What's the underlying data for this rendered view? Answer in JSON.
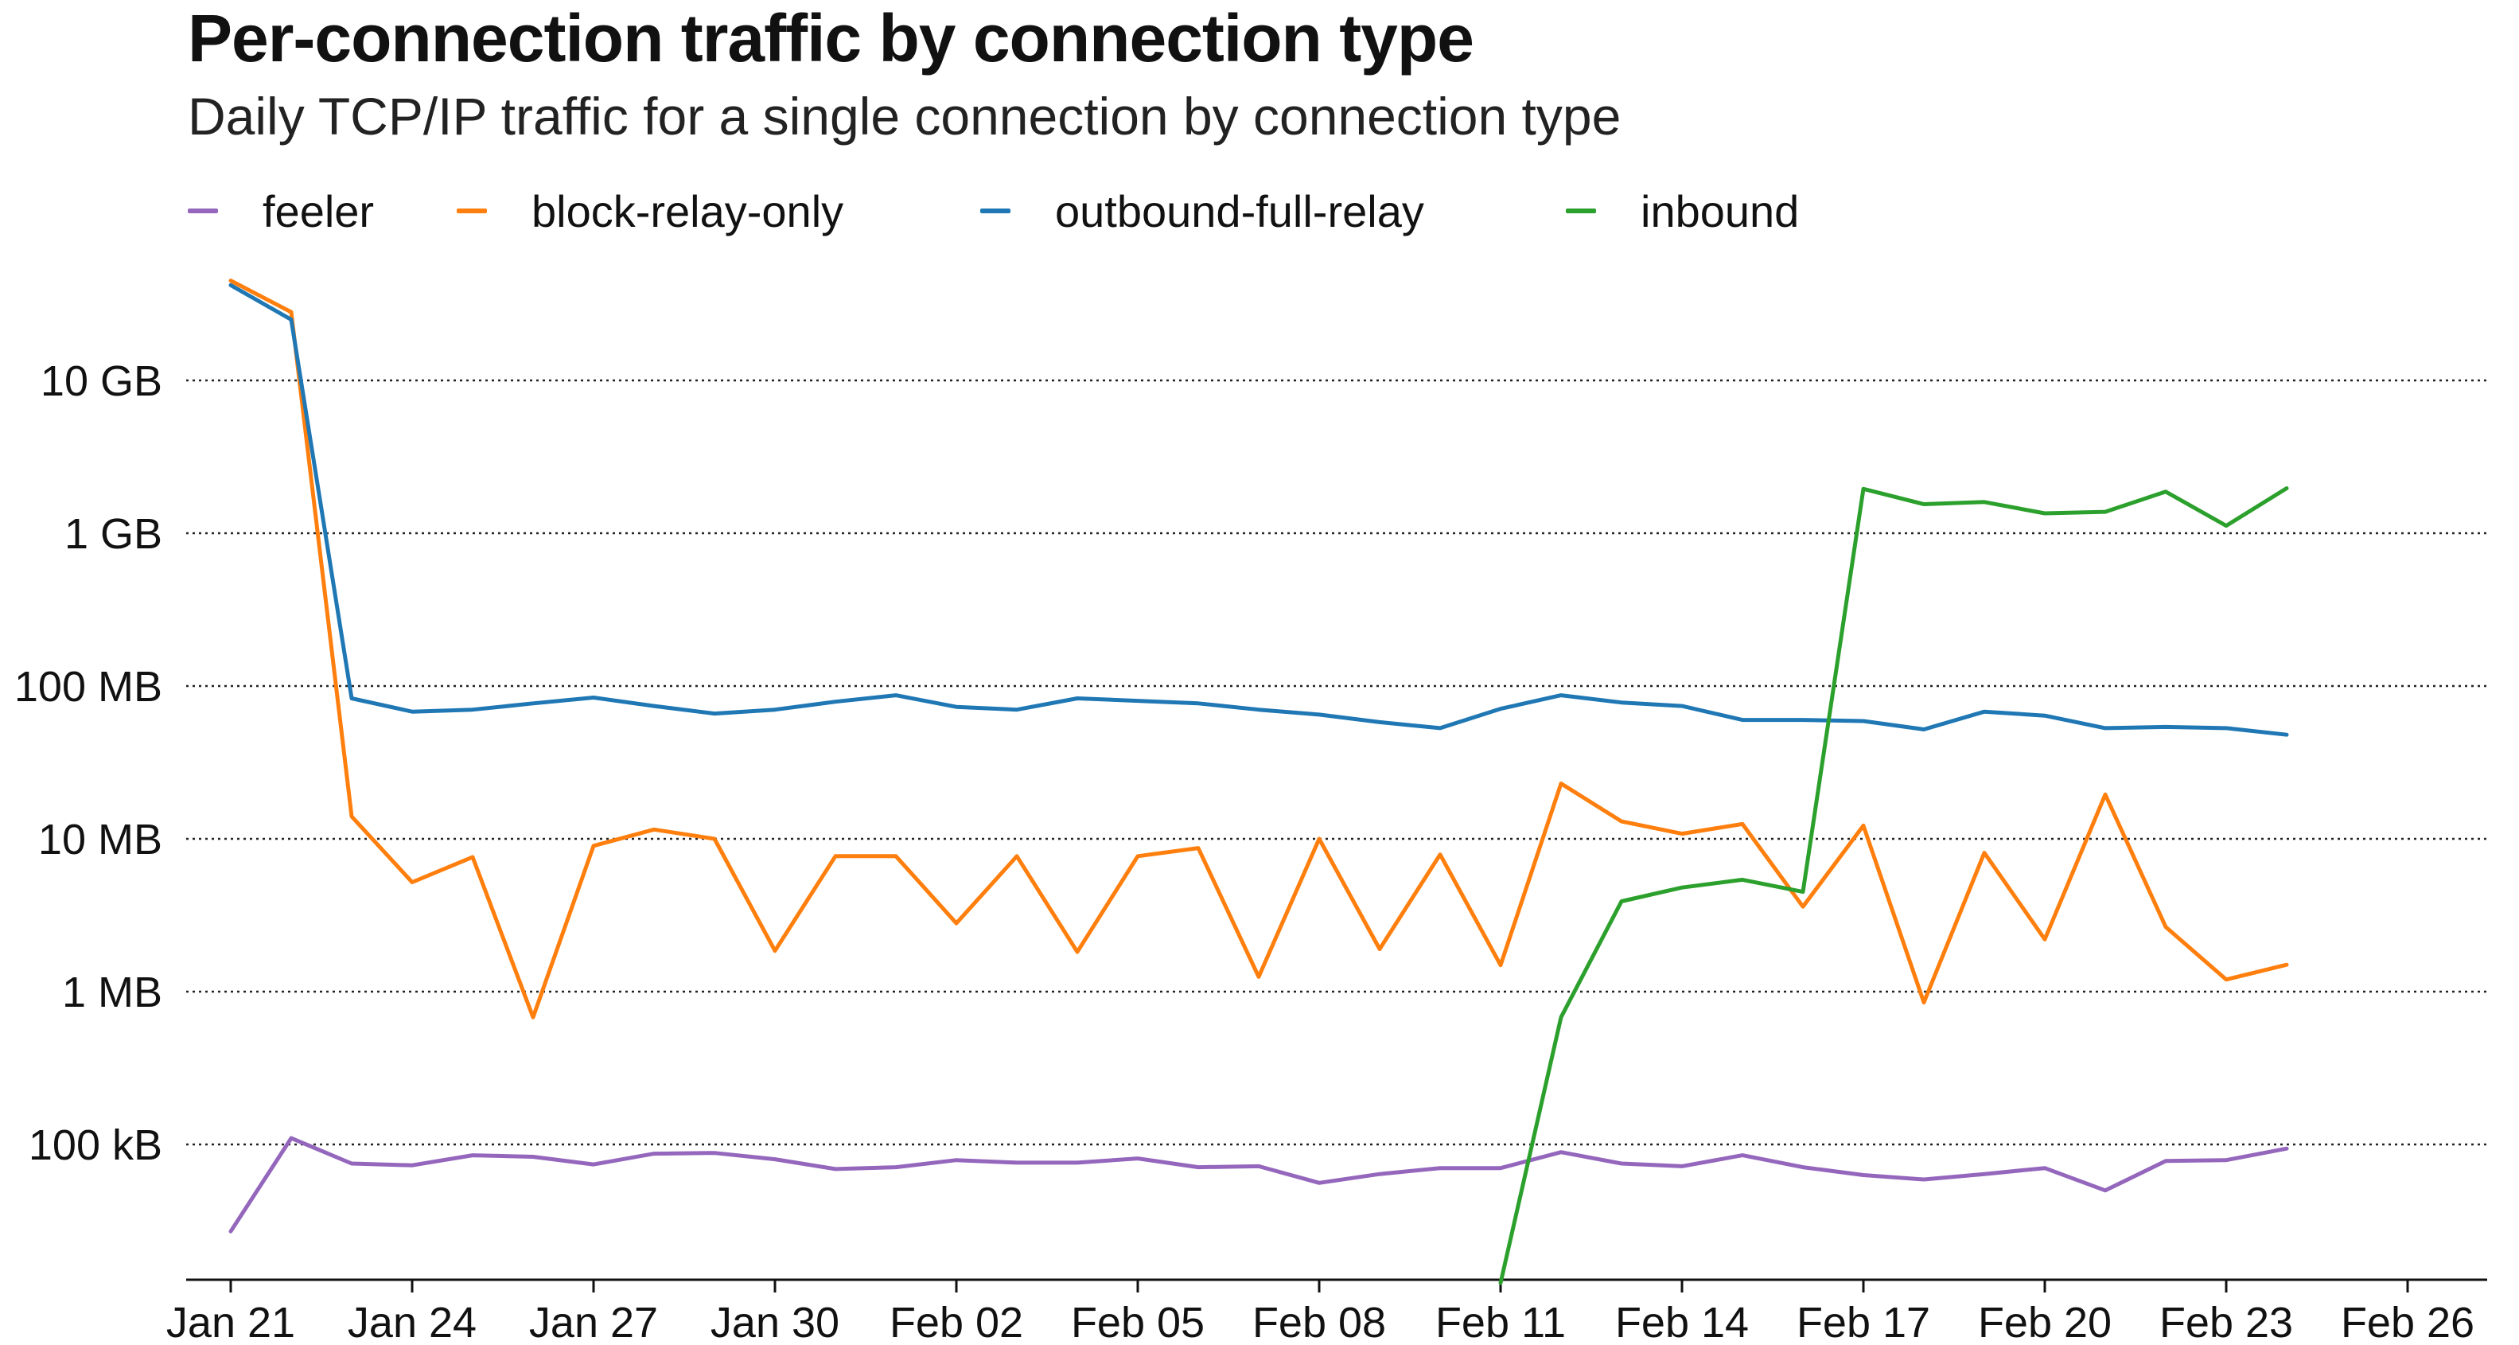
{
  "chart_data": {
    "type": "line",
    "title": "Per-connection traffic by connection type",
    "subtitle": "Daily TCP/IP traffic for a single connection by connection type",
    "xlabel": "",
    "ylabel": "",
    "yscale": "log",
    "ylim": [
      15000,
      60000000000
    ],
    "grid": "horizontal dotted",
    "legend_position": "top-left",
    "x_ticks": [
      "Jan 21",
      "Jan 24",
      "Jan 27",
      "Jan 30",
      "Feb 02",
      "Feb 05",
      "Feb 08",
      "Feb 11",
      "Feb 14",
      "Feb 17",
      "Feb 20",
      "Feb 23",
      "Feb 26"
    ],
    "y_ticks": [
      {
        "label": "100 kB",
        "value": 100000
      },
      {
        "label": "1 MB",
        "value": 1000000
      },
      {
        "label": "10 MB",
        "value": 10000000
      },
      {
        "label": "100 MB",
        "value": 100000000
      },
      {
        "label": "1 GB",
        "value": 1000000000
      },
      {
        "label": "10 GB",
        "value": 10000000000
      }
    ],
    "x": [
      "Jan 21",
      "Jan 22",
      "Jan 23",
      "Jan 24",
      "Jan 25",
      "Jan 26",
      "Jan 27",
      "Jan 28",
      "Jan 29",
      "Jan 30",
      "Jan 31",
      "Feb 01",
      "Feb 02",
      "Feb 03",
      "Feb 04",
      "Feb 05",
      "Feb 06",
      "Feb 07",
      "Feb 08",
      "Feb 09",
      "Feb 10",
      "Feb 11",
      "Feb 12",
      "Feb 13",
      "Feb 14",
      "Feb 15",
      "Feb 16",
      "Feb 17",
      "Feb 18",
      "Feb 19",
      "Feb 20",
      "Feb 21",
      "Feb 22",
      "Feb 23",
      "Feb 24",
      "Feb 25"
    ],
    "series": [
      {
        "name": "feeler",
        "color": "#9467bd",
        "values": [
          27000,
          110000,
          75000,
          73000,
          85000,
          83000,
          74000,
          87000,
          88000,
          80000,
          69000,
          71000,
          79000,
          76000,
          76000,
          81000,
          71000,
          72000,
          56000,
          64000,
          70000,
          70000,
          89000,
          75000,
          72000,
          85000,
          71000,
          63000,
          59000,
          64000,
          70000,
          50000,
          78000,
          79000,
          94000,
          null
        ]
      },
      {
        "name": "block-relay-only",
        "color": "#ff7f0e",
        "values": [
          45000000000,
          28000000000,
          14000000,
          5200000,
          7600000,
          680000,
          9000000,
          11500000,
          10000000,
          1850000,
          7700000,
          7700000,
          2800000,
          7700000,
          1820000,
          7700000,
          8700000,
          1250000,
          10000000,
          1900000,
          7900000,
          1490000,
          23000000,
          13000000,
          10800000,
          12500000,
          3600000,
          12200000,
          850000,
          8100000,
          2200000,
          19500000,
          2650000,
          1200000,
          1500000,
          null
        ]
      },
      {
        "name": "outbound-full-relay",
        "color": "#1f77b4",
        "values": [
          42000000000,
          25000000000,
          83000000,
          68000000,
          70000000,
          77000000,
          84000000,
          74000000,
          66000000,
          70000000,
          79000000,
          87000000,
          73000000,
          70000000,
          83000000,
          80000000,
          77000000,
          70000000,
          65000000,
          58000000,
          53000000,
          71000000,
          87000000,
          78000000,
          74000000,
          60000000,
          60000000,
          59000000,
          52000000,
          68000000,
          64000000,
          53000000,
          54000000,
          53000000,
          48000000,
          null
        ]
      },
      {
        "name": "inbound",
        "color": "#2ca02c",
        "values": [
          null,
          null,
          null,
          null,
          null,
          null,
          null,
          null,
          null,
          null,
          null,
          null,
          null,
          null,
          null,
          null,
          null,
          null,
          null,
          null,
          null,
          10,
          680000,
          3900000,
          4800000,
          5400000,
          4500000,
          1950000000,
          1550000000,
          1600000000,
          1350000000,
          1380000000,
          1870000000,
          1120000000,
          1970000000,
          null
        ]
      }
    ]
  }
}
